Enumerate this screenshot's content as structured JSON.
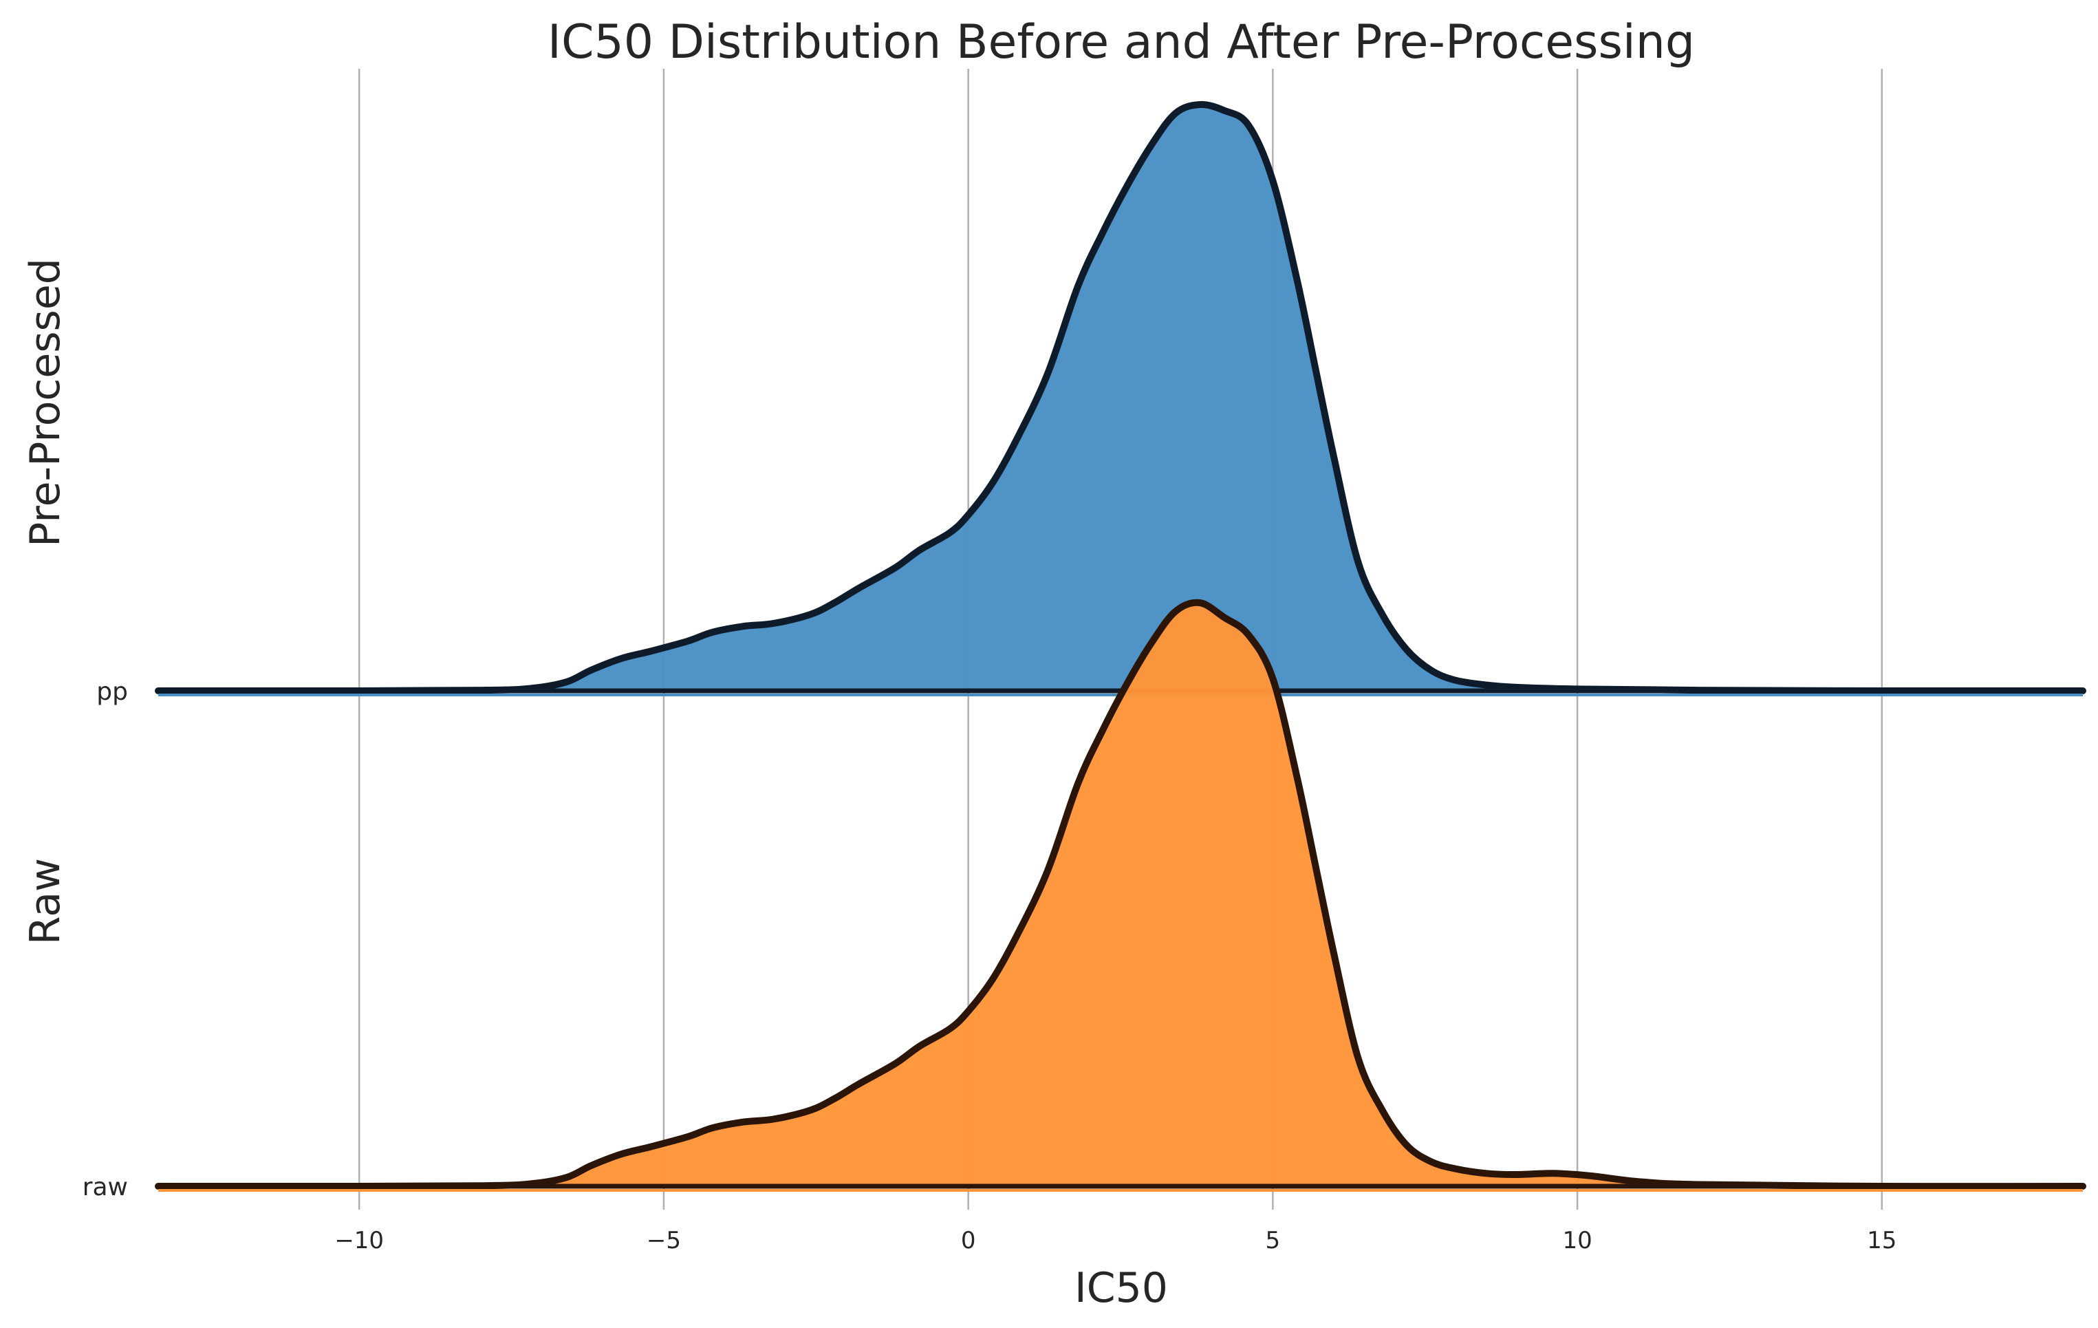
{
  "chart_data": {
    "type": "area",
    "subtype": "ridgeline",
    "title": "IC50 Distribution Before and After Pre-Processing",
    "xlabel": "IC50",
    "xlim": [
      -13.3,
      18.3
    ],
    "xticks": [
      -10,
      -5,
      0,
      5,
      10,
      15
    ],
    "xtick_labels": [
      "−10",
      "−5",
      "0",
      "5",
      "10",
      "15"
    ],
    "grid": "vertical",
    "series": [
      {
        "group_label": "Pre-Processed",
        "category_label": "pp",
        "color": "#4a8fc4",
        "line_color": "#0d1b2a",
        "x": [
          -13.3,
          -10,
          -8,
          -7.2,
          -6.6,
          -6.2,
          -5.7,
          -5.2,
          -4.6,
          -4.2,
          -3.7,
          -3.2,
          -2.6,
          -2.2,
          -1.8,
          -1.2,
          -0.8,
          -0.3,
          0,
          0.4,
          0.8,
          1.3,
          1.8,
          2.2,
          2.6,
          3.0,
          3.4,
          3.8,
          4.2,
          4.6,
          5.0,
          5.4,
          5.7,
          6.0,
          6.4,
          6.8,
          7.2,
          7.6,
          8.0,
          8.5,
          9.0,
          10,
          12,
          15,
          18.3
        ],
        "y": [
          0,
          0,
          0.001,
          0.004,
          0.015,
          0.035,
          0.055,
          0.068,
          0.085,
          0.1,
          0.11,
          0.115,
          0.13,
          0.15,
          0.175,
          0.21,
          0.24,
          0.27,
          0.3,
          0.355,
          0.43,
          0.54,
          0.69,
          0.78,
          0.86,
          0.93,
          0.985,
          1.0,
          0.99,
          0.965,
          0.87,
          0.7,
          0.55,
          0.4,
          0.22,
          0.13,
          0.07,
          0.035,
          0.018,
          0.01,
          0.006,
          0.003,
          0.001,
          0,
          0
        ]
      },
      {
        "group_label": "Raw",
        "category_label": "raw",
        "color": "#ff9538",
        "line_color": "#2a1508",
        "x": [
          -13.3,
          -10,
          -8,
          -7.2,
          -6.6,
          -6.2,
          -5.7,
          -5.2,
          -4.6,
          -4.2,
          -3.7,
          -3.2,
          -2.6,
          -2.2,
          -1.8,
          -1.2,
          -0.8,
          -0.3,
          0,
          0.4,
          0.8,
          1.3,
          1.8,
          2.2,
          2.6,
          3.0,
          3.4,
          3.8,
          4.2,
          4.6,
          5.0,
          5.4,
          5.7,
          6.0,
          6.4,
          6.8,
          7.2,
          7.6,
          8.0,
          8.5,
          9.0,
          9.6,
          10.2,
          11,
          12,
          15,
          18.3
        ],
        "y": [
          0,
          0,
          0.001,
          0.004,
          0.015,
          0.035,
          0.055,
          0.068,
          0.085,
          0.1,
          0.11,
          0.115,
          0.13,
          0.15,
          0.175,
          0.21,
          0.24,
          0.27,
          0.3,
          0.355,
          0.43,
          0.54,
          0.69,
          0.78,
          0.86,
          0.93,
          0.985,
          1.0,
          0.975,
          0.945,
          0.87,
          0.7,
          0.55,
          0.4,
          0.22,
          0.13,
          0.07,
          0.042,
          0.03,
          0.022,
          0.02,
          0.022,
          0.018,
          0.008,
          0.003,
          0,
          0
        ]
      }
    ]
  }
}
